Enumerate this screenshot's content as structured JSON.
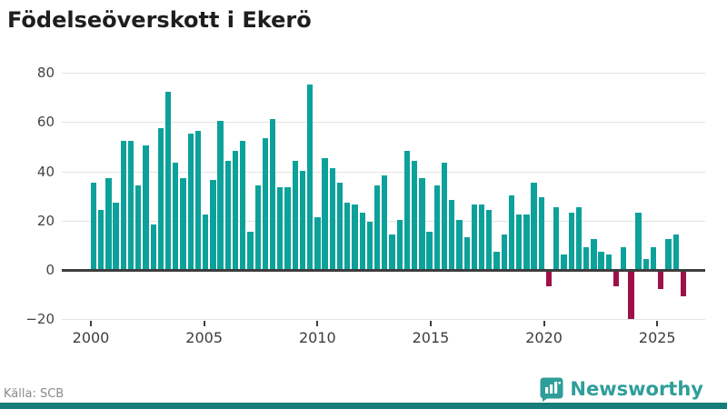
{
  "chart_data": {
    "type": "bar",
    "title": "Födelseöverskott i Ekerö",
    "xlabel": "",
    "ylabel": "",
    "start_year": 2000,
    "periods_per_year": 3,
    "values": [
      35,
      24,
      37,
      27,
      52,
      52,
      34,
      50,
      18,
      57,
      72,
      43,
      37,
      55,
      56,
      22,
      36,
      60,
      44,
      48,
      52,
      15,
      34,
      53,
      61,
      33,
      33,
      44,
      40,
      75,
      21,
      45,
      41,
      35,
      27,
      26,
      23,
      19,
      34,
      38,
      14,
      20,
      48,
      44,
      37,
      15,
      34,
      43,
      28,
      20,
      13,
      26,
      26,
      24,
      7,
      14,
      30,
      22,
      22,
      35,
      29,
      -6,
      25,
      6,
      23,
      25,
      9,
      12,
      7,
      6,
      -6,
      9,
      -19,
      23,
      4,
      9,
      -7,
      12,
      14,
      -10
    ],
    "xticks": [
      2000,
      2005,
      2010,
      2015,
      2020,
      2025
    ],
    "yticks": [
      -20,
      0,
      20,
      40,
      60,
      80
    ],
    "yticklabels": [
      "−20",
      "0",
      "20",
      "40",
      "60",
      "80"
    ],
    "ylim": [
      -20,
      80
    ],
    "grid": "horizontal",
    "legend": "none",
    "positive_color": "#0ca29b",
    "negative_color": "#9e1147"
  },
  "footer": {
    "source": "Källa: SCB",
    "brand": "Newsworthy",
    "brand_color": "#2f9e9a",
    "accent_bar_color": "#177d7a"
  }
}
